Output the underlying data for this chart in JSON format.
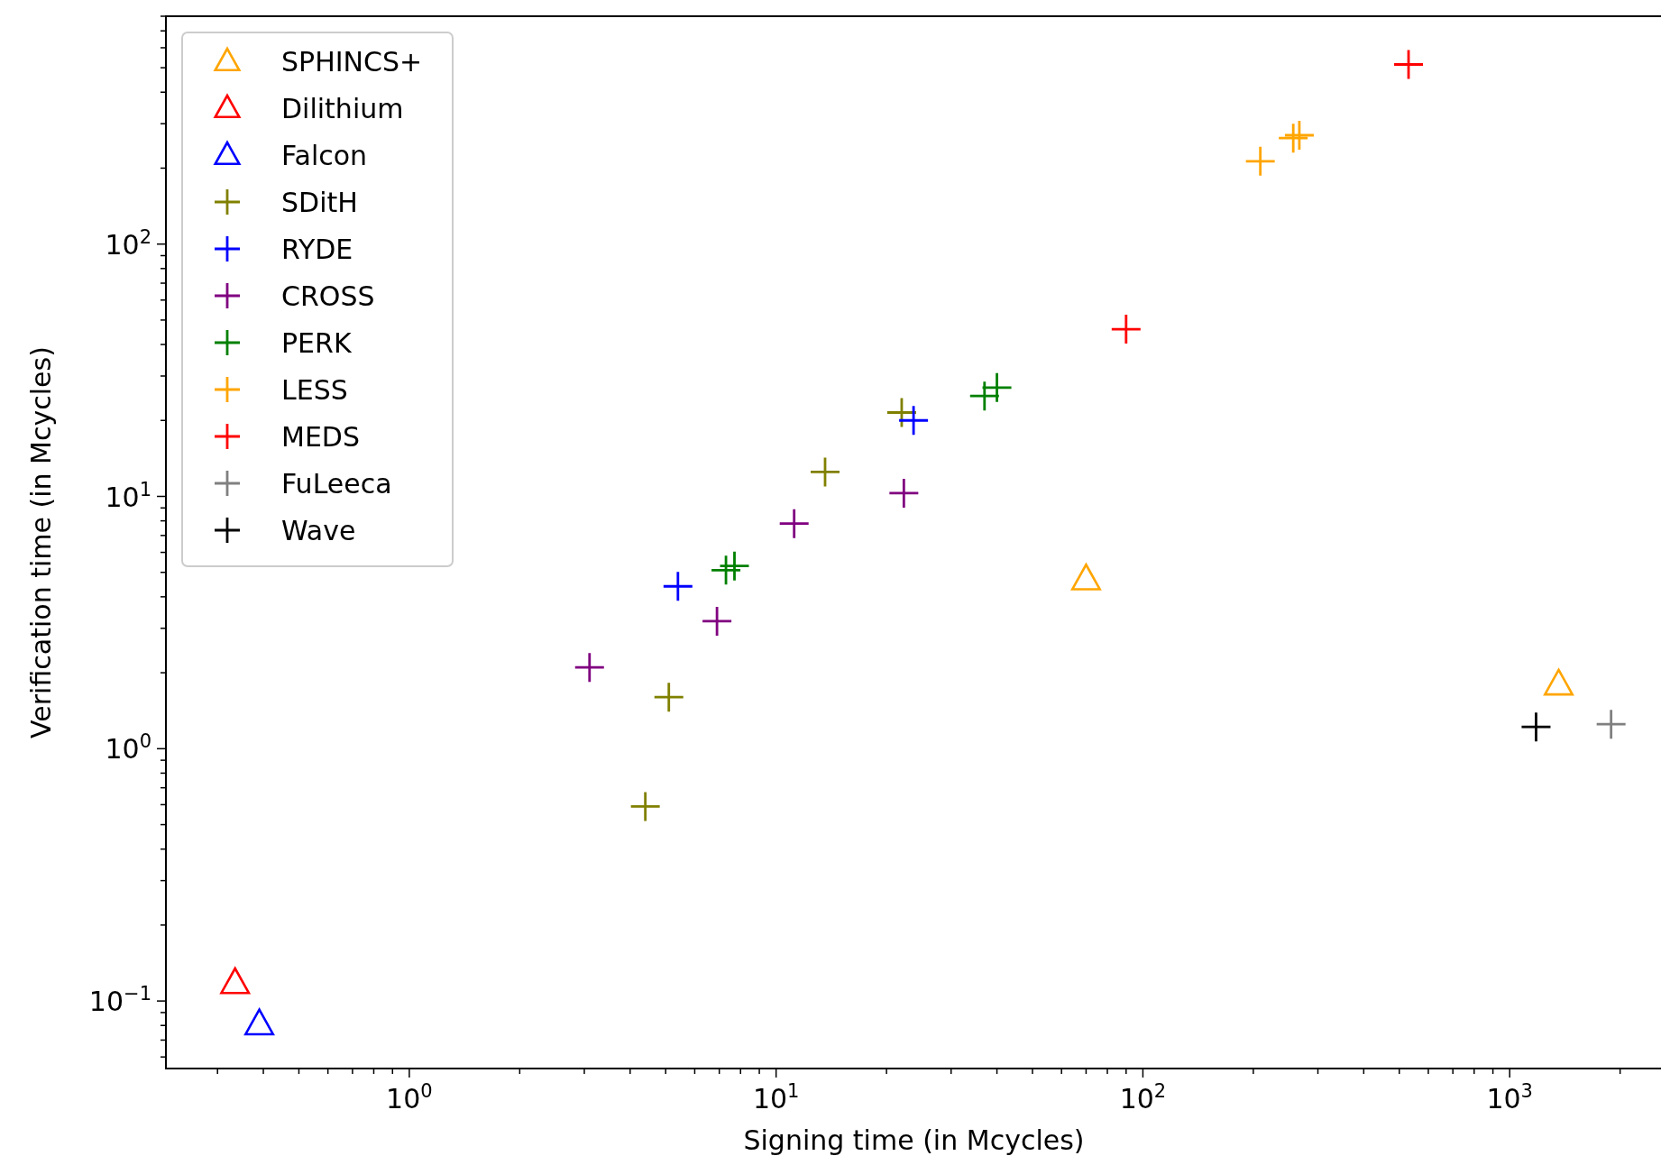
{
  "chart_data": {
    "type": "scatter",
    "xlabel": "Signing time (in Mcycles)",
    "ylabel": "Verification time (in Mcycles)",
    "log": "xy",
    "grid": false,
    "legend": "top left",
    "xlim": [
      0.217,
      2600
    ],
    "ylim": [
      0.054,
      800
    ],
    "xticks": [
      {
        "value": 0.3,
        "label": null
      },
      {
        "value": 0.4,
        "label": null
      },
      {
        "value": 0.5,
        "label": null
      },
      {
        "value": 0.6,
        "label": null
      },
      {
        "value": 0.7,
        "label": null
      },
      {
        "value": 0.8,
        "label": null
      },
      {
        "value": 0.9,
        "label": null
      },
      {
        "value": 1,
        "label": "10$^{0}$"
      },
      {
        "value": 2,
        "label": null
      },
      {
        "value": 3,
        "label": null
      },
      {
        "value": 4,
        "label": null
      },
      {
        "value": 5,
        "label": null
      },
      {
        "value": 6,
        "label": null
      },
      {
        "value": 7,
        "label": null
      },
      {
        "value": 8,
        "label": null
      },
      {
        "value": 9,
        "label": null
      },
      {
        "value": 10,
        "label": "10$^{1}$"
      },
      {
        "value": 20,
        "label": null
      },
      {
        "value": 30,
        "label": null
      },
      {
        "value": 40,
        "label": null
      },
      {
        "value": 50,
        "label": null
      },
      {
        "value": 60,
        "label": null
      },
      {
        "value": 70,
        "label": null
      },
      {
        "value": 80,
        "label": null
      },
      {
        "value": 90,
        "label": null
      },
      {
        "value": 100,
        "label": "10$^{2}$"
      },
      {
        "value": 200,
        "label": null
      },
      {
        "value": 300,
        "label": null
      },
      {
        "value": 400,
        "label": null
      },
      {
        "value": 500,
        "label": null
      },
      {
        "value": 600,
        "label": null
      },
      {
        "value": 700,
        "label": null
      },
      {
        "value": 800,
        "label": null
      },
      {
        "value": 900,
        "label": null
      },
      {
        "value": 1000,
        "label": "10$^{3}$"
      },
      {
        "value": 2000,
        "label": null
      }
    ],
    "yticks": [
      {
        "value": 0.06,
        "label": null
      },
      {
        "value": 0.07,
        "label": null
      },
      {
        "value": 0.08,
        "label": null
      },
      {
        "value": 0.09,
        "label": null
      },
      {
        "value": 0.1,
        "label": "10$^{−1}$"
      },
      {
        "value": 0.2,
        "label": null
      },
      {
        "value": 0.3,
        "label": null
      },
      {
        "value": 0.4,
        "label": null
      },
      {
        "value": 0.5,
        "label": null
      },
      {
        "value": 0.6,
        "label": null
      },
      {
        "value": 0.7,
        "label": null
      },
      {
        "value": 0.8,
        "label": null
      },
      {
        "value": 0.9,
        "label": null
      },
      {
        "value": 1,
        "label": "10$^{0}$"
      },
      {
        "value": 2,
        "label": null
      },
      {
        "value": 3,
        "label": null
      },
      {
        "value": 4,
        "label": null
      },
      {
        "value": 5,
        "label": null
      },
      {
        "value": 6,
        "label": null
      },
      {
        "value": 7,
        "label": null
      },
      {
        "value": 8,
        "label": null
      },
      {
        "value": 9,
        "label": null
      },
      {
        "value": 10,
        "label": "10$^{1}$"
      },
      {
        "value": 20,
        "label": null
      },
      {
        "value": 30,
        "label": null
      },
      {
        "value": 40,
        "label": null
      },
      {
        "value": 50,
        "label": null
      },
      {
        "value": 60,
        "label": null
      },
      {
        "value": 70,
        "label": null
      },
      {
        "value": 80,
        "label": null
      },
      {
        "value": 90,
        "label": null
      },
      {
        "value": 100,
        "label": "10$^{2}$"
      },
      {
        "value": 200,
        "label": null
      },
      {
        "value": 300,
        "label": null
      },
      {
        "value": 400,
        "label": null
      },
      {
        "value": 500,
        "label": null
      },
      {
        "value": 600,
        "label": null
      },
      {
        "value": 700,
        "label": null
      },
      {
        "value": 800,
        "label": null
      }
    ],
    "series": [
      {
        "name": "SPHINCS+",
        "color": "#ffa500",
        "marker": "triangle",
        "x": [
          70,
          1360
        ],
        "values": [
          4.7,
          1.8
        ]
      },
      {
        "name": "Dilithium",
        "color": "#ff0000",
        "marker": "triangle",
        "x": [
          0.335
        ],
        "values": [
          0.118
        ]
      },
      {
        "name": "Falcon",
        "color": "#0000ff",
        "marker": "triangle",
        "x": [
          0.39
        ],
        "values": [
          0.081
        ]
      },
      {
        "name": "SDitH",
        "color": "#808000",
        "marker": "cross",
        "x": [
          4.4,
          5.1,
          13.6,
          22
        ],
        "values": [
          0.59,
          1.6,
          12.5,
          21.5
        ]
      },
      {
        "name": "RYDE",
        "color": "#0000ff",
        "marker": "cross",
        "x": [
          5.4,
          23.7
        ],
        "values": [
          4.4,
          20
        ]
      },
      {
        "name": "CROSS",
        "color": "#800080",
        "marker": "cross",
        "x": [
          3.1,
          6.9,
          11.2,
          22.3
        ],
        "values": [
          2.1,
          3.2,
          7.8,
          10.3
        ]
      },
      {
        "name": "PERK",
        "color": "#008000",
        "marker": "cross",
        "x": [
          7.3,
          7.7,
          37,
          40
        ],
        "values": [
          5.1,
          5.3,
          25,
          27
        ]
      },
      {
        "name": "LESS",
        "color": "#ffa500",
        "marker": "cross",
        "x": [
          209,
          257,
          267
        ],
        "values": [
          213,
          263,
          270
        ]
      },
      {
        "name": "MEDS",
        "color": "#ff0000",
        "marker": "cross",
        "x": [
          90,
          530
        ],
        "values": [
          46,
          515
        ]
      },
      {
        "name": "FuLeeca",
        "color": "#808080",
        "marker": "cross",
        "x": [
          1890
        ],
        "values": [
          1.25
        ]
      },
      {
        "name": "Wave",
        "color": "#000000",
        "marker": "cross",
        "x": [
          1180
        ],
        "values": [
          1.22
        ]
      }
    ]
  }
}
